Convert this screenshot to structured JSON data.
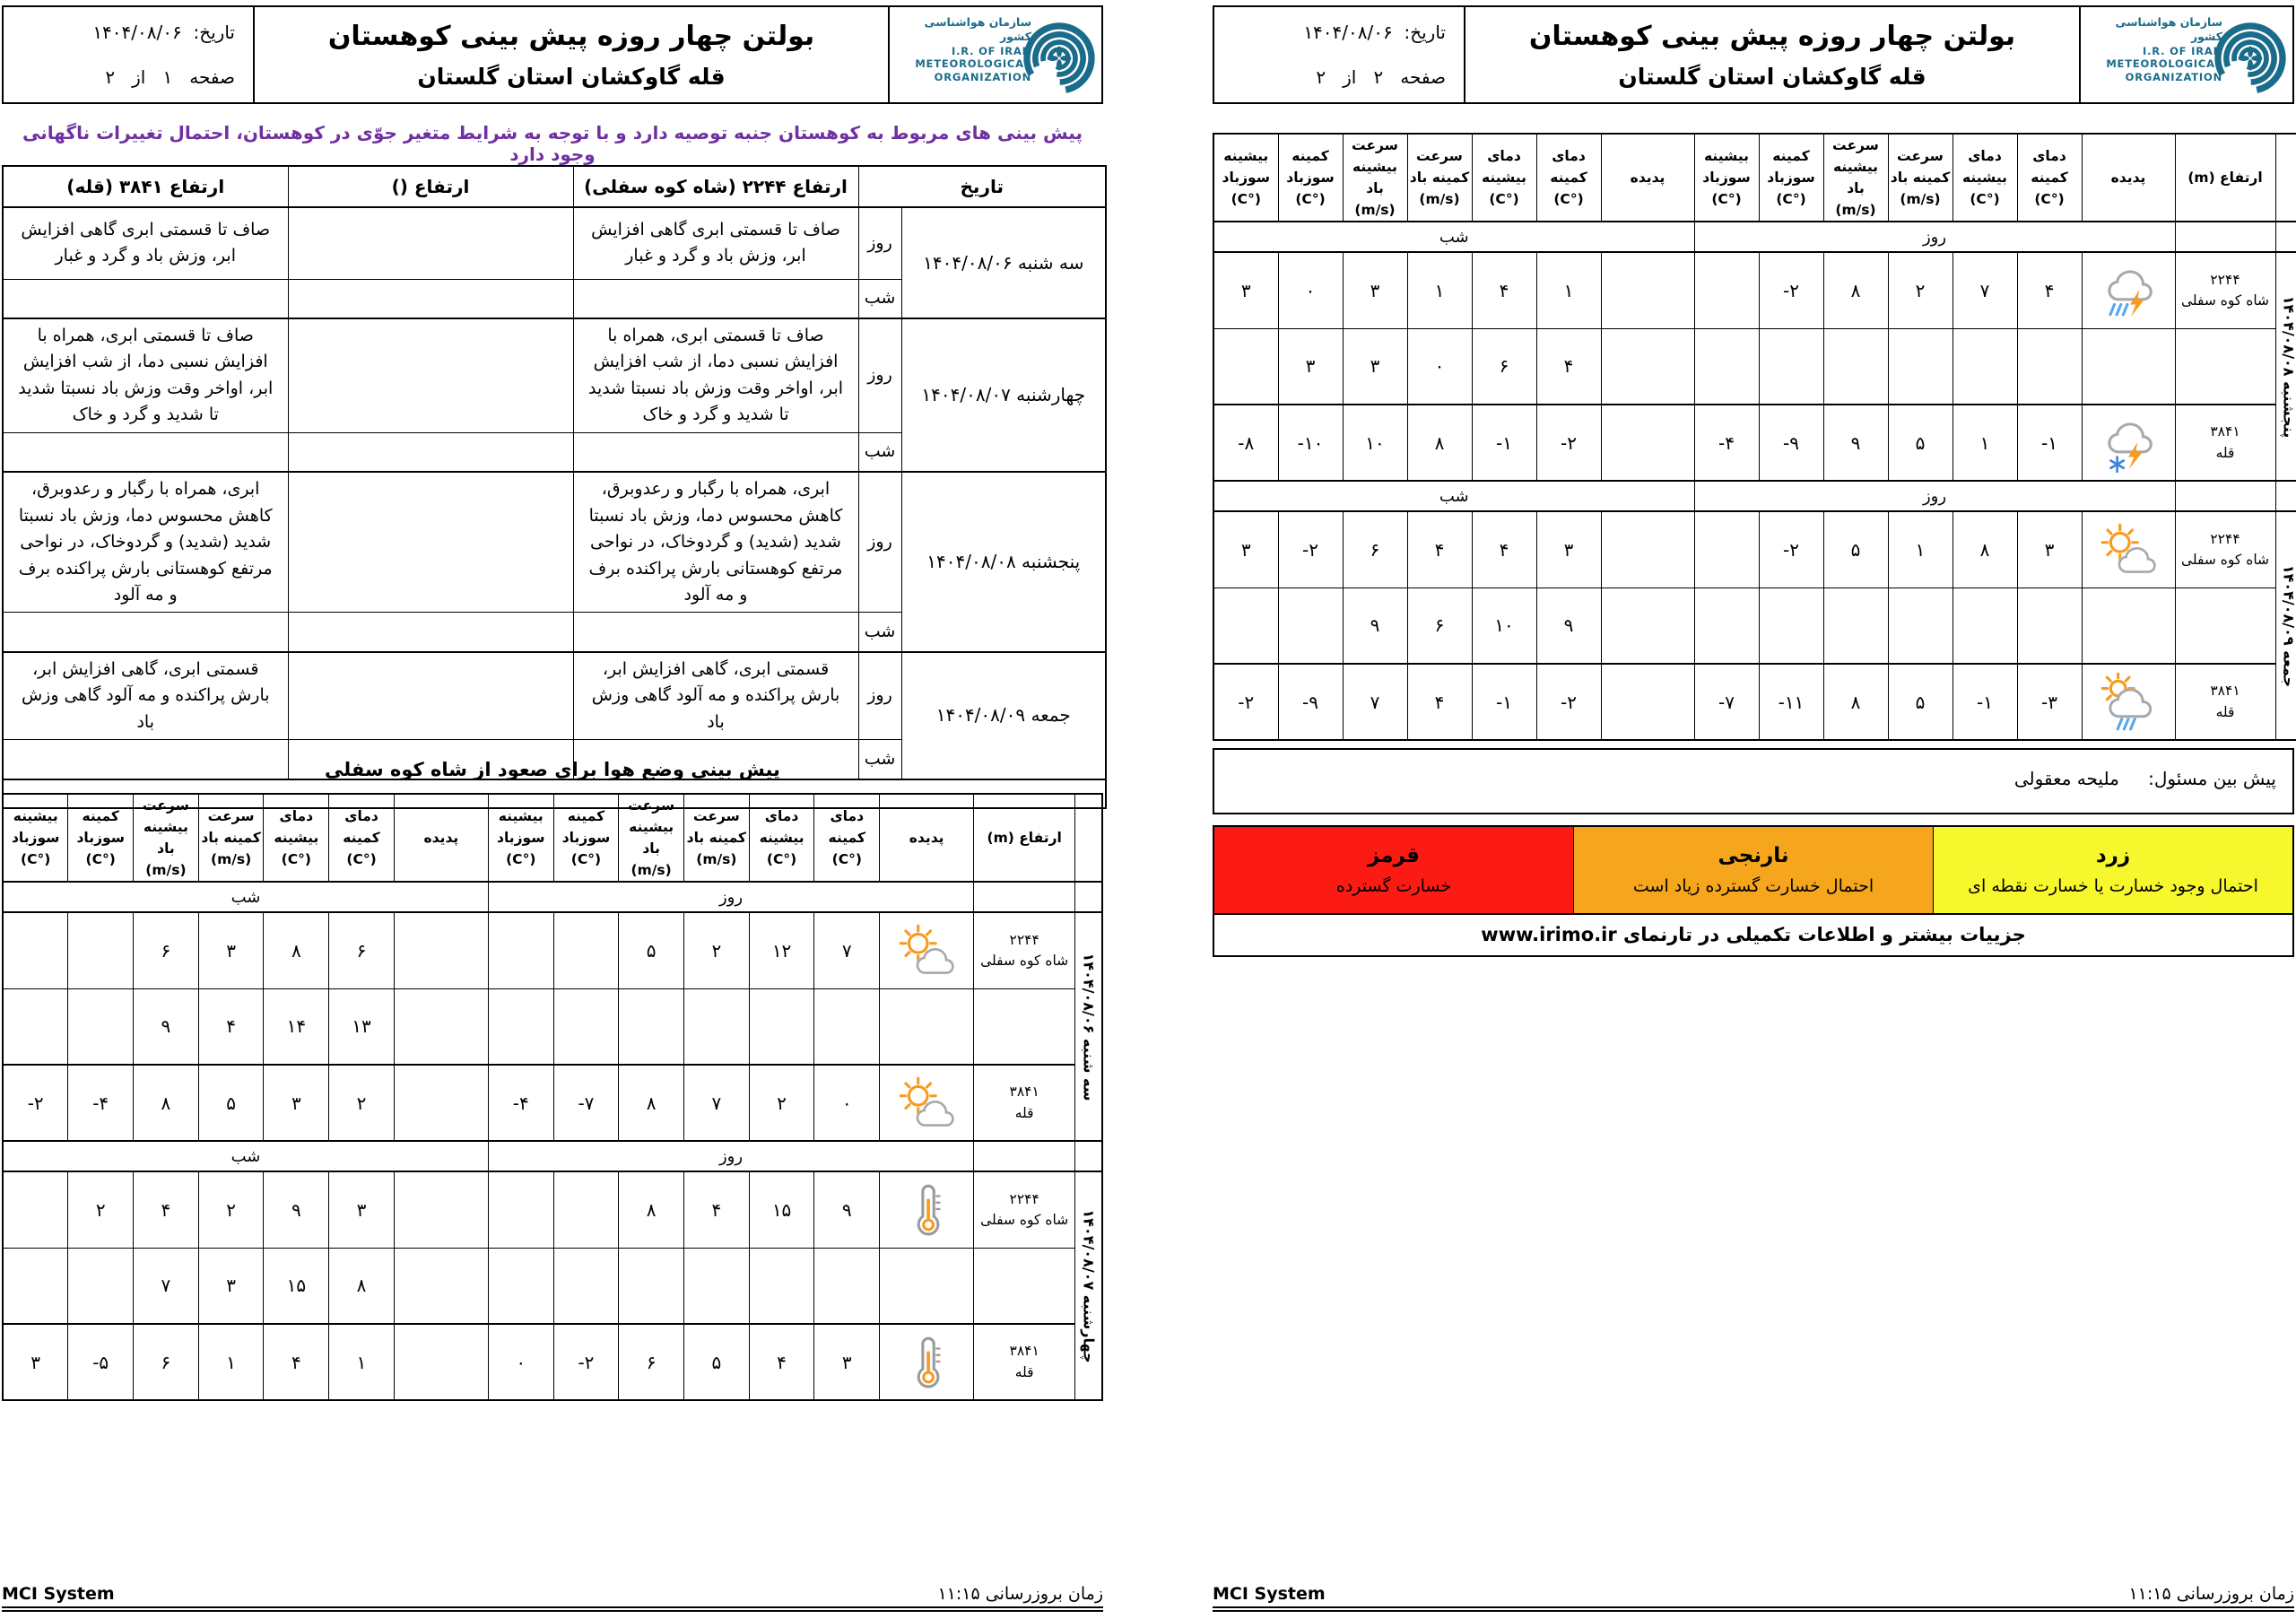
{
  "shared": {
    "title": "بولتن چهار روزه پیش بینی کوهستان",
    "subtitle": "قله گاوکشان استان گلستان",
    "date_label": "تاریخ:",
    "date_value": "۱۴۰۴/۰۸/۰۶",
    "logo": {
      "fa": "سازمان هواشناسی کشور",
      "en1": "I.R. OF IRAN",
      "en2": "METEOROLOGICAL",
      "en3": "ORGANIZATION",
      "color": "#1b6b8a"
    },
    "footer_left": "MCI System",
    "footer_right": "زمان بروزرسانی  ۱۱:۱۵",
    "day_label": "روز",
    "night_label": "شب"
  },
  "numeric_headers": {
    "alt": "ارتفاع (m)",
    "phen": "پدیده",
    "cols": [
      "دمای\nکمینه\n(°C)",
      "دمای\nبیشینه\n(°C)",
      "سرعت\nکمینه باد\n(m/s)",
      "سرعت\nبیشینه باد\n(m/s)",
      "کمینه\nسوزباد\n(°C)",
      "بیشینه\nسوزباد\n(°C)"
    ]
  },
  "page1": {
    "page_info": "صفحه   ۱   از   ۲",
    "warning": "پیش بینی های مربوط به کوهستان جنبه توصیه دارد و با توجه به شرایط متغیر جوّی در کوهستان، احتمال تغییرات ناگهانی وجود دارد",
    "text_table": {
      "headers": [
        "تاریخ",
        "ارتفاع ۲۲۴۴ (شاه کوه سفلی)",
        "ارتفاع  ()",
        "ارتفاع ۳۸۴۱ (قله)"
      ],
      "blocks": [
        {
          "date": "سه شنبه ۱۴۰۴/۰۸/۰۶",
          "day": [
            "صاف تا قسمتی ابری گاهی افزایش ابر، وزش باد و گرد و غبار",
            "",
            "صاف تا قسمتی ابری گاهی افزایش ابر، وزش باد و گرد و غبار"
          ],
          "night": [
            "",
            "",
            ""
          ]
        },
        {
          "date": "چهارشنبه ۱۴۰۴/۰۸/۰۷",
          "day": [
            "صاف تا قسمتی ابری، همراه با افزایش نسبی دما، از شب افزایش ابر، اواخر وقت وزش باد نسبتا شدید تا شدید و گرد و خاک",
            "",
            "صاف تا قسمتی ابری، همراه با افزایش نسبی دما، از شب افزایش ابر، اواخر وقت وزش باد نسبتا شدید تا شدید و گرد و خاک"
          ],
          "night": [
            "",
            "",
            ""
          ]
        },
        {
          "date": "پنجشنبه ۱۴۰۴/۰۸/۰۸",
          "day": [
            "ابری، همراه با رگبار و رعدوبرق، کاهش محسوس دما، وزش باد نسبتا شدید (شدید) و گردوخاک، در نواحی مرتفع کوهستانی بارش پراکنده برف و مه آلود",
            "",
            "ابری، همراه با رگبار و رعدوبرق، کاهش محسوس دما، وزش باد نسبتا شدید (شدید) و گردوخاک، در نواحی مرتفع کوهستانی بارش پراکنده برف و مه آلود"
          ],
          "night": [
            "",
            "",
            ""
          ]
        },
        {
          "date": "جمعه ۱۴۰۴/۰۸/۰۹",
          "day": [
            "قسمتی ابری، گاهی افزایش ابر، بارش پراکنده و مه آلود گاهی وزش باد",
            "",
            "قسمتی ابری، گاهی افزایش ابر، بارش پراکنده و مه آلود گاهی وزش باد"
          ],
          "night": [
            "",
            "",
            ""
          ]
        }
      ]
    },
    "ascent_title": "پیش بینی وضع هوا برای صعود از شاه کوه سفلی",
    "numeric": {
      "blocks": [
        {
          "date": "سه شنبه ۱۴۰۴/۰۸/۰۶",
          "rows": [
            {
              "alt": "۲۲۴۴\nشاه کوه سفلی",
              "icon": "sun-cloud",
              "day": [
                "۷",
                "۱۲",
                "۲",
                "۵",
                "",
                ""
              ],
              "night": [
                "۶",
                "۸",
                "۳",
                "۶",
                "",
                ""
              ]
            },
            {
              "alt": "",
              "icon": "",
              "day": [
                "",
                "",
                "",
                "",
                "",
                ""
              ],
              "night": [
                "۱۳",
                "۱۴",
                "۴",
                "۹",
                "",
                ""
              ]
            },
            {
              "alt": "۳۸۴۱\nقله",
              "icon": "sun-cloud",
              "day": [
                "۰",
                "۲",
                "۷",
                "۸",
                "-۷",
                "-۴"
              ],
              "night": [
                "۲",
                "۳",
                "۵",
                "۸",
                "-۴",
                "-۲"
              ]
            }
          ]
        },
        {
          "date": "چهارشنبه ۱۴۰۴/۰۸/۰۷",
          "rows": [
            {
              "alt": "۲۲۴۴\nشاه کوه سفلی",
              "icon": "thermometer",
              "day": [
                "۹",
                "۱۵",
                "۴",
                "۸",
                "",
                ""
              ],
              "night": [
                "۳",
                "۹",
                "۲",
                "۴",
                "۲",
                ""
              ]
            },
            {
              "alt": "",
              "icon": "",
              "day": [
                "",
                "",
                "",
                "",
                "",
                ""
              ],
              "night": [
                "۸",
                "۱۵",
                "۳",
                "۷",
                "",
                ""
              ]
            },
            {
              "alt": "۳۸۴۱\nقله",
              "icon": "thermometer",
              "day": [
                "۳",
                "۴",
                "۵",
                "۶",
                "-۲",
                "۰"
              ],
              "night": [
                "۱",
                "۴",
                "۱",
                "۶",
                "-۵",
                "۳"
              ]
            }
          ]
        }
      ]
    }
  },
  "page2": {
    "page_info": "صفحه   ۲   از   ۲",
    "numeric": {
      "blocks": [
        {
          "date": "پنجشنبه ۱۴۰۴/۰۸/۰۸",
          "rows": [
            {
              "alt": "۲۲۴۴\nشاه کوه سفلی",
              "icon": "storm-rain",
              "day": [
                "۴",
                "۷",
                "۲",
                "۸",
                "-۲",
                ""
              ],
              "night": [
                "۱",
                "۴",
                "۱",
                "۳",
                "۰",
                "۳"
              ]
            },
            {
              "alt": "",
              "icon": "",
              "day": [
                "",
                "",
                "",
                "",
                "",
                ""
              ],
              "night": [
                "۴",
                "۶",
                "۰",
                "۳",
                "۳",
                ""
              ]
            },
            {
              "alt": "۳۸۴۱\nقله",
              "icon": "storm-snow",
              "day": [
                "-۱",
                "۱",
                "۵",
                "۹",
                "-۹",
                "-۴"
              ],
              "night": [
                "-۲",
                "-۱",
                "۸",
                "۱۰",
                "-۱۰",
                "-۸"
              ]
            }
          ]
        },
        {
          "date": "جمعه ۱۴۰۴/۰۸/۰۹",
          "rows": [
            {
              "alt": "۲۲۴۴\nشاه کوه سفلی",
              "icon": "sun-cloud",
              "day": [
                "۳",
                "۸",
                "۱",
                "۵",
                "-۲",
                ""
              ],
              "night": [
                "۳",
                "۴",
                "۴",
                "۶",
                "-۲",
                "۳"
              ]
            },
            {
              "alt": "",
              "icon": "",
              "day": [
                "",
                "",
                "",
                "",
                "",
                ""
              ],
              "night": [
                "۹",
                "۱۰",
                "۶",
                "۹",
                "",
                ""
              ]
            },
            {
              "alt": "۳۸۴۱\nقله",
              "icon": "sun-cloud-rain",
              "day": [
                "-۳",
                "-۱",
                "۵",
                "۸",
                "-۱۱",
                "-۷"
              ],
              "night": [
                "-۲",
                "-۱",
                "۴",
                "۷",
                "-۹",
                "-۲"
              ]
            }
          ]
        }
      ]
    },
    "forecaster_label": "پیش بین مسئول:",
    "forecaster_name": "ملیحه معقولی",
    "legend": [
      {
        "name": "زرد",
        "desc": "احتمال وجود خسارت یا خسارت نقطه ای",
        "color": "#f7f72e"
      },
      {
        "name": "نارنجی",
        "desc": "احتمال خسارت گسترده زیاد است",
        "color": "#f5a61d"
      },
      {
        "name": "قرمز",
        "desc": "خسارت گسترده",
        "color": "#fb1b14"
      }
    ],
    "website_note": "جزییات بیشتر و اطلاعات تکمیلی در تارنمای www.irimo.ir"
  }
}
